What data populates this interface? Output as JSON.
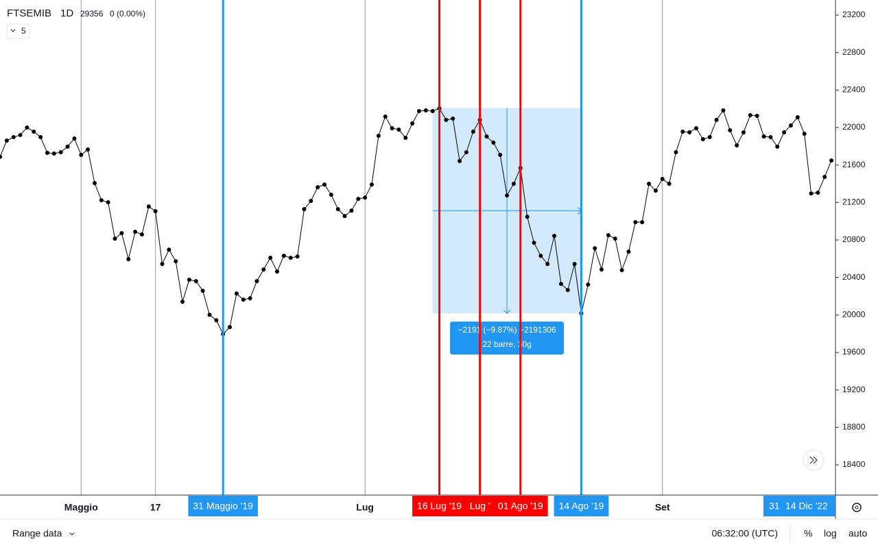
{
  "symbol": "FTSEMIB",
  "interval": "1D",
  "price": "29356",
  "change": "0 (0.00%)",
  "indicator": "5",
  "chart_data": {
    "type": "line",
    "color": "#000000",
    "xlim": [
      0,
      123.6
    ],
    "ylim": [
      18078,
      23361
    ],
    "yticks": [
      18400,
      18800,
      19200,
      19600,
      20000,
      20400,
      20800,
      21200,
      21600,
      22000,
      22400,
      22800,
      23200
    ],
    "xticks": [
      {
        "value": 12,
        "label": "Maggio"
      },
      {
        "value": 23,
        "label": "17"
      },
      {
        "value": 54,
        "label": "Lug"
      },
      {
        "value": 98,
        "label": "Set"
      }
    ],
    "values": [
      21687,
      21861,
      21898,
      21920,
      22000,
      21956,
      21898,
      21730,
      21723,
      21737,
      21796,
      21883,
      21708,
      21766,
      21407,
      21224,
      21202,
      20815,
      20873,
      20595,
      20888,
      20859,
      21158,
      21107,
      20544,
      20697,
      20573,
      20141,
      20376,
      20361,
      20258,
      20002,
      19944,
      19797,
      19871,
      20229,
      20163,
      20178,
      20361,
      20485,
      20610,
      20463,
      20632,
      20610,
      20624,
      21129,
      21217,
      21363,
      21392,
      21283,
      21129,
      21056,
      21114,
      21239,
      21253,
      21392,
      21912,
      22117,
      21993,
      21978,
      21890,
      22044,
      22176,
      22183,
      22176,
      22205,
      22081,
      22095,
      21642,
      21737,
      21956,
      22081,
      21905,
      21839,
      21708,
      21276,
      21400,
      21568,
      21048,
      20771,
      20632,
      20544,
      20844,
      20332,
      20266,
      20544,
      20017,
      20324,
      20712,
      20485,
      20851,
      20815,
      20478,
      20676,
      20990,
      20990,
      21400,
      21327,
      21451,
      21400,
      21737,
      21956,
      21949,
      21993,
      21876,
      21898,
      22081,
      22183,
      21971,
      21810,
      21949,
      22132,
      22125,
      21905,
      21898,
      21796,
      21949,
      22022,
      22110,
      21934,
      21297,
      21305,
      21473,
      21649
    ],
    "markers": [
      {
        "index": 33,
        "label": "31 Maggio '19",
        "color": "#2196f3"
      },
      {
        "index": 65,
        "label": "16 Lug '19",
        "color": "#ff0000"
      },
      {
        "index": 71,
        "label": "Lug '",
        "color": "#ff0000"
      },
      {
        "index": 77,
        "label": "01 Ago '19",
        "color": "#ff0000"
      },
      {
        "index": 86,
        "label": "14 Ago '19",
        "color": "#2196f3"
      }
    ],
    "right_badges": [
      "31",
      "14 Dic '22"
    ],
    "measure": {
      "start": 64,
      "end": 86,
      "from": 22208,
      "to": 20017,
      "label": "−2191 (−9.87%) −2191306",
      "sublabel": "22 barre, 30g"
    }
  },
  "footer": {
    "range": "Range data",
    "time": "06:32:00 (UTC)",
    "percent": "%",
    "log": "log",
    "auto": "auto"
  }
}
